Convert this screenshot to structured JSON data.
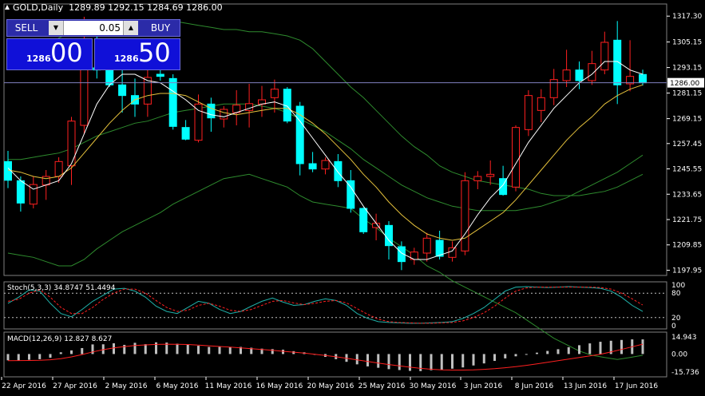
{
  "header": {
    "symbol": "GOLD,Daily",
    "ohlc": "1289.89 1292.15 1284.69 1286.00"
  },
  "trade_panel": {
    "sell_label": "SELL",
    "buy_label": "BUY",
    "lot_value": "0.05",
    "sell_price_small": "1286",
    "sell_price_big": "00",
    "buy_price_small": "1286",
    "buy_price_big": "50"
  },
  "price_axis": {
    "ticks": [
      "1317.30",
      "1305.15",
      "1293.15",
      "1281.15",
      "1269.15",
      "1257.45",
      "1245.55",
      "1233.65",
      "1221.75",
      "1209.85",
      "1197.95"
    ],
    "current": "1286.00"
  },
  "stoch": {
    "label": "Stoch(5,3,3) 34.8747 51.4494",
    "ticks": [
      "100",
      "80",
      "20",
      "0"
    ],
    "k": [
      55,
      70,
      88,
      85,
      55,
      30,
      22,
      40,
      60,
      75,
      90,
      92,
      85,
      70,
      48,
      35,
      30,
      45,
      60,
      55,
      40,
      30,
      35,
      48,
      60,
      68,
      58,
      50,
      52,
      60,
      66,
      62,
      50,
      30,
      18,
      10,
      8,
      7,
      6,
      6,
      7,
      8,
      10,
      18,
      30,
      45,
      65,
      85,
      95,
      96,
      95,
      94,
      95,
      96,
      95,
      94,
      92,
      85,
      70,
      50,
      35
    ],
    "d": [
      60,
      65,
      80,
      88,
      70,
      45,
      30,
      30,
      45,
      65,
      80,
      90,
      90,
      80,
      62,
      45,
      35,
      38,
      50,
      55,
      48,
      38,
      35,
      40,
      50,
      60,
      62,
      56,
      52,
      55,
      60,
      62,
      56,
      42,
      28,
      16,
      10,
      8,
      7,
      6,
      6,
      7,
      8,
      12,
      20,
      32,
      48,
      68,
      85,
      93,
      95,
      95,
      95,
      95,
      95,
      95,
      94,
      90,
      80,
      66,
      51
    ]
  },
  "macd": {
    "label": "MACD(12,26,9) 12.827 8.627",
    "ticks": [
      "14.943",
      "0.00",
      "-15.736"
    ],
    "hist": [
      -5.5,
      -5.7,
      -5.0,
      -4.5,
      -3.2,
      1.5,
      3.2,
      5.2,
      8.4,
      8.5,
      9.4,
      8.0,
      9.8,
      8.6,
      10.2,
      10.0,
      9.0,
      8.5,
      7.2,
      6.2,
      6.2,
      6.2,
      6.2,
      5.5,
      4.7,
      4.3,
      3.8,
      2.5,
      1.5,
      -0.5,
      -2.5,
      -4.5,
      -6.8,
      -9.0,
      -10.8,
      -12.0,
      -13.2,
      -14.0,
      -14.7,
      -14.9,
      -14.2,
      -13.6,
      -12.8,
      -11.7,
      -10.0,
      -8.2,
      -6.0,
      -3.8,
      -2.0,
      -0.2,
      1.2,
      2.7,
      4.2,
      6.0,
      7.7,
      9.3,
      10.7,
      11.6,
      12.3,
      12.8,
      12.8
    ],
    "signal": [
      -5.8,
      -5.7,
      -5.6,
      -5.4,
      -5.0,
      -4.0,
      -2.5,
      -0.5,
      1.8,
      3.8,
      5.4,
      6.5,
      7.5,
      8.0,
      8.4,
      8.6,
      8.5,
      8.3,
      7.8,
      7.2,
      6.6,
      6.0,
      5.4,
      4.7,
      4.0,
      3.2,
      2.4,
      1.6,
      0.8,
      -0.2,
      -1.2,
      -2.4,
      -3.7,
      -5.1,
      -6.5,
      -7.9,
      -9.2,
      -10.4,
      -11.5,
      -12.5,
      -13.3,
      -13.8,
      -14.0,
      -14.0,
      -13.8,
      -13.4,
      -12.8,
      -12.0,
      -11.0,
      -9.9,
      -8.6,
      -7.2,
      -5.8,
      -4.4,
      -3.0,
      -1.6,
      -0.2,
      1.8,
      4.0,
      6.4,
      8.6
    ]
  },
  "time_axis": {
    "labels": [
      "22 Apr 2016",
      "27 Apr 2016",
      "2 May 2016",
      "6 May 2016",
      "11 May 2016",
      "16 May 2016",
      "20 May 2016",
      "25 May 2016",
      "30 May 2016",
      "3 Jun 2016",
      "8 Jun 2016",
      "13 Jun 2016",
      "17 Jun 2016"
    ]
  },
  "colors": {
    "bull_body": "#000000",
    "bull_outline": "#ff2020",
    "bear_body": "#00ffff",
    "bear_outline": "#00ffff",
    "bollinger": "#2e8b2e",
    "ma_white": "#ffffff",
    "ma_yellow": "#e6c23c",
    "stoch_k": "#20b2aa",
    "stoch_d": "#ff2020",
    "macd_hist": "#c0c0c0",
    "macd_signal": "#ff2020",
    "axis_text": "#ffffff",
    "current_line": "#8080c0"
  },
  "chart_data": {
    "type": "candlestick",
    "candles": [
      [
        1249.0,
        1254.0,
        1236.5,
        1240.2
      ],
      [
        1240.0,
        1242.0,
        1225.5,
        1229.5
      ],
      [
        1229.0,
        1242.0,
        1227.0,
        1238.2
      ],
      [
        1238.0,
        1245.0,
        1231.0,
        1242.0
      ],
      [
        1242.0,
        1251.0,
        1239.0,
        1249.0
      ],
      [
        1247.0,
        1270.0,
        1238.0,
        1268.0
      ],
      [
        1266.0,
        1317.0,
        1262.0,
        1294.0
      ],
      [
        1293.0,
        1310.0,
        1288.0,
        1292.0
      ],
      [
        1293.0,
        1305.0,
        1284.0,
        1285.0
      ],
      [
        1285.0,
        1294.0,
        1272.0,
        1280.0
      ],
      [
        1280.0,
        1288.0,
        1270.0,
        1276.0
      ],
      [
        1276.0,
        1298.0,
        1270.0,
        1288.5
      ],
      [
        1290.0,
        1299.0,
        1287.0,
        1289.0
      ],
      [
        1288.0,
        1290.0,
        1264.0,
        1265.5
      ],
      [
        1265.0,
        1268.5,
        1259.0,
        1259.5
      ],
      [
        1259.0,
        1280.5,
        1258.0,
        1276.0
      ],
      [
        1276.0,
        1279.0,
        1263.0,
        1269.5
      ],
      [
        1269.0,
        1275.0,
        1265.0,
        1273.5
      ],
      [
        1272.0,
        1282.5,
        1266.0,
        1275.5
      ],
      [
        1273.0,
        1285.5,
        1265.0,
        1276.2
      ],
      [
        1276.0,
        1284.5,
        1270.0,
        1278.0
      ],
      [
        1279.0,
        1287.5,
        1272.0,
        1283.0
      ],
      [
        1283.0,
        1284.0,
        1267.0,
        1268.0
      ],
      [
        1275.0,
        1277.0,
        1242.5,
        1248.0
      ],
      [
        1248.0,
        1253.5,
        1244.0,
        1245.5
      ],
      [
        1245.5,
        1251.0,
        1243.0,
        1249.5
      ],
      [
        1249.0,
        1252.5,
        1237.0,
        1240.0
      ],
      [
        1240.0,
        1245.0,
        1225.0,
        1227.0
      ],
      [
        1227.0,
        1227.5,
        1215.0,
        1216.0
      ],
      [
        1218.0,
        1224.5,
        1212.0,
        1220.0
      ],
      [
        1219.0,
        1221.0,
        1203.0,
        1209.5
      ],
      [
        1209.0,
        1211.5,
        1198.0,
        1202.0
      ],
      [
        1203.0,
        1208.5,
        1200.5,
        1206.5
      ],
      [
        1206.0,
        1215.5,
        1202.0,
        1213.0
      ],
      [
        1212.0,
        1216.5,
        1203.0,
        1204.5
      ],
      [
        1204.0,
        1211.5,
        1202.0,
        1208.5
      ],
      [
        1207.0,
        1244.0,
        1205.0,
        1240.0
      ],
      [
        1240.0,
        1244.5,
        1236.0,
        1242.0
      ],
      [
        1242.0,
        1249.5,
        1238.0,
        1243.0
      ],
      [
        1241.0,
        1247.0,
        1233.0,
        1233.5
      ],
      [
        1237.0,
        1266.0,
        1235.0,
        1265.0
      ],
      [
        1264.0,
        1282.5,
        1261.0,
        1280.0
      ],
      [
        1273.0,
        1283.0,
        1267.5,
        1279.0
      ],
      [
        1279.0,
        1292.5,
        1275.5,
        1287.5
      ],
      [
        1287.0,
        1301.5,
        1284.0,
        1292.0
      ],
      [
        1292.0,
        1296.0,
        1283.0,
        1287.0
      ],
      [
        1287.0,
        1301.0,
        1285.0,
        1295.0
      ],
      [
        1292.0,
        1310.0,
        1290.0,
        1305.0
      ],
      [
        1306.0,
        1315.0,
        1276.0,
        1285.0
      ],
      [
        1285.5,
        1306.0,
        1282.0,
        1289.0
      ],
      [
        1289.89,
        1292.15,
        1284.69,
        1286.0
      ]
    ],
    "bb_upper": [
      1294,
      1296,
      1298,
      1303,
      1307,
      1310,
      1313,
      1314,
      1315,
      1315,
      1315,
      1315,
      1315,
      1315,
      1314,
      1313,
      1312,
      1311,
      1311,
      1310,
      1310,
      1309,
      1308,
      1306,
      1302,
      1296,
      1290,
      1284,
      1279,
      1273,
      1267,
      1261,
      1256,
      1252,
      1247,
      1244,
      1242,
      1240,
      1239,
      1238,
      1237,
      1236,
      1234,
      1233,
      1233,
      1233,
      1234,
      1235,
      1237,
      1240,
      1243
    ],
    "bb_mid": [
      1250,
      1250,
      1251,
      1252,
      1253,
      1255,
      1258,
      1261,
      1263,
      1265,
      1267,
      1268,
      1270,
      1272,
      1273,
      1274,
      1275,
      1276,
      1276,
      1276,
      1275,
      1274,
      1272,
      1269,
      1266,
      1263,
      1259,
      1255,
      1250,
      1246,
      1242,
      1238,
      1235,
      1232,
      1230,
      1228,
      1227,
      1226,
      1226,
      1226,
      1226,
      1227,
      1228,
      1230,
      1232,
      1235,
      1238,
      1241,
      1244,
      1248,
      1252
    ],
    "bb_lower": [
      1206,
      1205,
      1204,
      1202,
      1200,
      1200,
      1203,
      1208,
      1212,
      1216,
      1219,
      1222,
      1225,
      1229,
      1232,
      1235,
      1238,
      1241,
      1242,
      1243,
      1241,
      1239,
      1237,
      1233,
      1230,
      1229,
      1228,
      1227,
      1222,
      1218,
      1213,
      1209,
      1205,
      1200,
      1197,
      1193,
      1190,
      1187,
      1184,
      1181,
      1178,
      1174,
      1170,
      1166,
      1163,
      1160,
      1158,
      1157,
      1156,
      1157,
      1158
    ],
    "ma_white": [
      1246,
      1240,
      1236,
      1238,
      1240,
      1248,
      1262,
      1276,
      1285,
      1290,
      1290,
      1287,
      1286,
      1282,
      1278,
      1273,
      1271,
      1270,
      1272,
      1274,
      1276,
      1277,
      1275,
      1268,
      1260,
      1252,
      1244,
      1237,
      1228,
      1220,
      1212,
      1206,
      1203,
      1203,
      1205,
      1207,
      1215,
      1224,
      1232,
      1238,
      1248,
      1258,
      1266,
      1274,
      1280,
      1286,
      1290,
      1296,
      1296,
      1292,
      1290
    ],
    "ma_yellow": [
      1245,
      1244,
      1242,
      1241,
      1242,
      1246,
      1253,
      1260,
      1267,
      1273,
      1278,
      1280,
      1281,
      1281,
      1280,
      1277,
      1274,
      1272,
      1271,
      1272,
      1273,
      1274,
      1274,
      1271,
      1267,
      1262,
      1256,
      1250,
      1243,
      1237,
      1230,
      1224,
      1219,
      1215,
      1213,
      1212,
      1213,
      1217,
      1221,
      1225,
      1231,
      1238,
      1245,
      1252,
      1259,
      1265,
      1270,
      1276,
      1280,
      1283,
      1285
    ]
  }
}
